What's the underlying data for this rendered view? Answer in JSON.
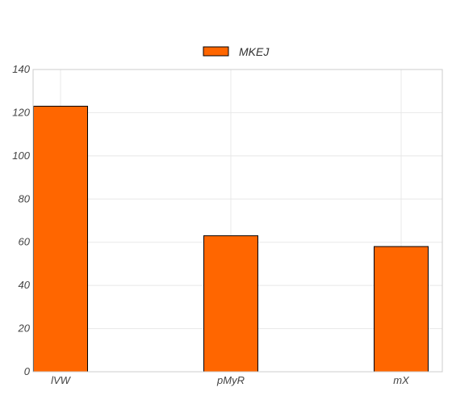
{
  "chart_data": {
    "type": "bar",
    "categories": [
      "lVW",
      "pMyR",
      "mX"
    ],
    "series": [
      {
        "name": "MKEJ",
        "values": [
          123,
          63,
          58
        ],
        "color": "#ff6600"
      }
    ],
    "ylim": [
      0,
      140
    ],
    "yticks": [
      0,
      20,
      40,
      60,
      80,
      100,
      120,
      140
    ],
    "grid": true,
    "legend_position": "top-center",
    "bar_edge_color": "#000000"
  }
}
